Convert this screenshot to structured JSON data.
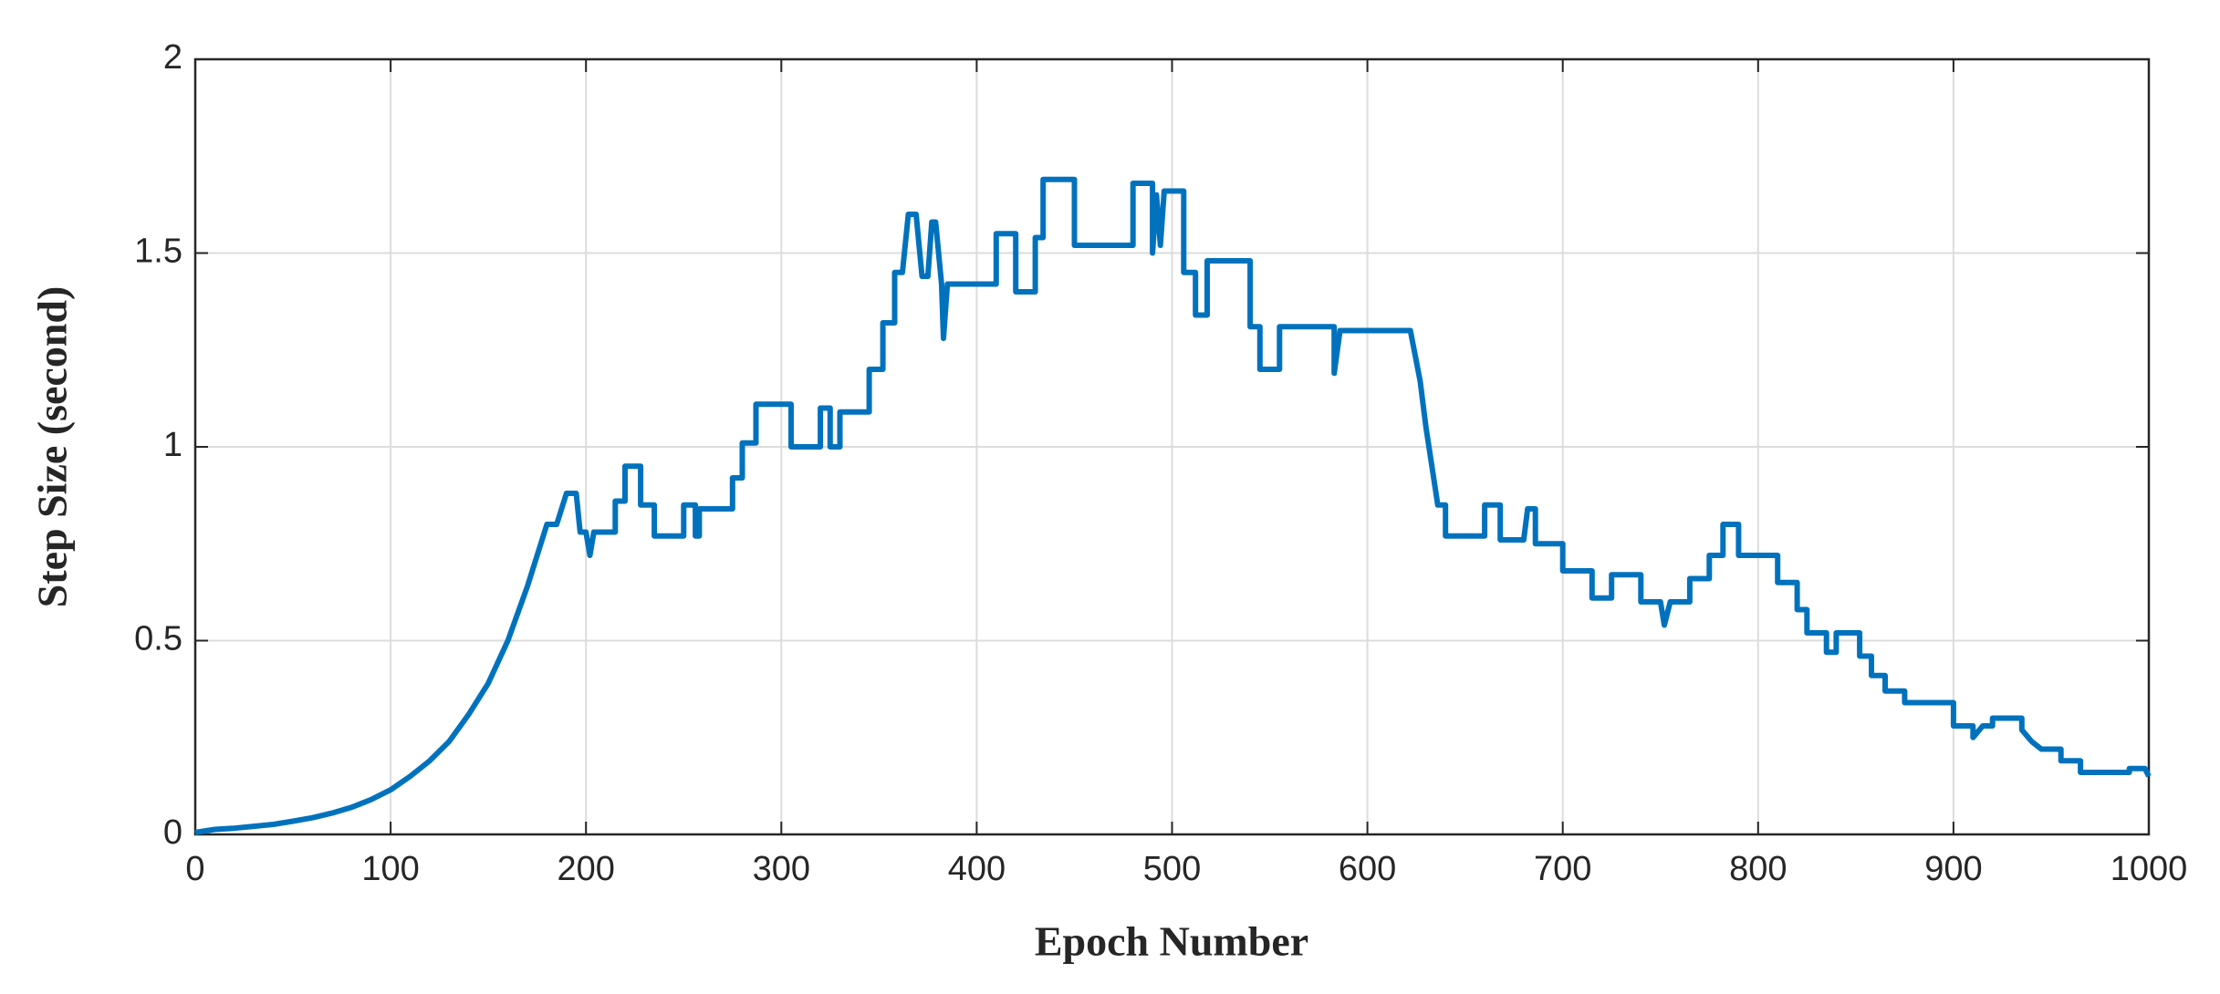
{
  "chart_data": {
    "type": "line",
    "xlabel": "Epoch Number",
    "ylabel": "Step Size (second)",
    "xlim": [
      0,
      1000
    ],
    "ylim": [
      0,
      2
    ],
    "xticks": [
      0,
      100,
      200,
      300,
      400,
      500,
      600,
      700,
      800,
      900,
      1000
    ],
    "yticks": [
      0,
      0.5,
      1,
      1.5,
      2
    ],
    "grid": true,
    "series": [
      {
        "color": "#0072bd",
        "x": [
          0,
          10,
          20,
          30,
          40,
          50,
          60,
          70,
          80,
          90,
          100,
          110,
          120,
          130,
          140,
          150,
          160,
          170,
          180,
          185,
          190,
          195,
          197,
          200,
          202,
          204,
          215,
          215,
          220,
          220,
          228,
          228,
          235,
          235,
          250,
          250,
          256,
          256,
          258,
          258,
          275,
          275,
          280,
          280,
          287,
          287,
          305,
          305,
          320,
          320,
          325,
          325,
          330,
          330,
          345,
          345,
          352,
          352,
          358,
          358,
          362,
          365,
          369,
          372,
          375,
          377,
          379,
          382,
          383,
          385,
          410,
          410,
          420,
          420,
          430,
          430,
          434,
          434,
          450,
          450,
          480,
          480,
          490,
          490,
          492,
          494,
          496,
          506,
          506,
          512,
          512,
          518,
          518,
          540,
          540,
          545,
          545,
          555,
          555,
          583,
          583,
          586,
          622,
          627,
          630,
          633,
          636,
          640,
          640,
          660,
          660,
          668,
          668,
          680,
          682,
          686,
          686,
          700,
          700,
          715,
          715,
          725,
          725,
          740,
          740,
          750,
          752,
          755,
          765,
          765,
          775,
          775,
          782,
          782,
          790,
          790,
          810,
          810,
          820,
          820,
          825,
          825,
          835,
          835,
          840,
          840,
          852,
          852,
          858,
          858,
          865,
          865,
          875,
          875,
          900,
          900,
          910,
          910,
          915,
          920,
          920,
          935,
          935,
          940,
          945,
          955,
          955,
          965,
          965,
          990,
          990,
          998,
          1000
        ],
        "values": [
          0.005,
          0.013,
          0.016,
          0.021,
          0.026,
          0.034,
          0.043,
          0.055,
          0.07,
          0.09,
          0.115,
          0.15,
          0.19,
          0.24,
          0.31,
          0.39,
          0.5,
          0.64,
          0.8,
          0.8,
          0.88,
          0.88,
          0.78,
          0.78,
          0.72,
          0.78,
          0.78,
          0.86,
          0.86,
          0.95,
          0.95,
          0.85,
          0.85,
          0.77,
          0.77,
          0.85,
          0.85,
          0.77,
          0.77,
          0.84,
          0.84,
          0.92,
          0.92,
          1.01,
          1.01,
          1.11,
          1.11,
          1.0,
          1.0,
          1.1,
          1.1,
          1.0,
          1.0,
          1.09,
          1.09,
          1.2,
          1.2,
          1.32,
          1.32,
          1.45,
          1.45,
          1.6,
          1.6,
          1.44,
          1.44,
          1.58,
          1.58,
          1.42,
          1.28,
          1.42,
          1.42,
          1.55,
          1.55,
          1.4,
          1.4,
          1.54,
          1.54,
          1.69,
          1.69,
          1.52,
          1.52,
          1.68,
          1.68,
          1.5,
          1.65,
          1.52,
          1.66,
          1.66,
          1.45,
          1.45,
          1.34,
          1.34,
          1.48,
          1.48,
          1.31,
          1.31,
          1.2,
          1.2,
          1.31,
          1.31,
          1.19,
          1.3,
          1.3,
          1.17,
          1.05,
          0.95,
          0.85,
          0.85,
          0.77,
          0.77,
          0.85,
          0.85,
          0.76,
          0.76,
          0.84,
          0.84,
          0.75,
          0.75,
          0.68,
          0.68,
          0.61,
          0.61,
          0.67,
          0.67,
          0.6,
          0.6,
          0.54,
          0.6,
          0.6,
          0.66,
          0.66,
          0.72,
          0.72,
          0.8,
          0.8,
          0.72,
          0.72,
          0.65,
          0.65,
          0.58,
          0.58,
          0.52,
          0.52,
          0.47,
          0.47,
          0.52,
          0.52,
          0.46,
          0.46,
          0.41,
          0.41,
          0.37,
          0.37,
          0.34,
          0.34,
          0.28,
          0.28,
          0.25,
          0.28,
          0.28,
          0.3,
          0.3,
          0.27,
          0.24,
          0.22,
          0.22,
          0.19,
          0.19,
          0.16,
          0.16,
          0.17,
          0.17,
          0.15
        ]
      }
    ]
  }
}
